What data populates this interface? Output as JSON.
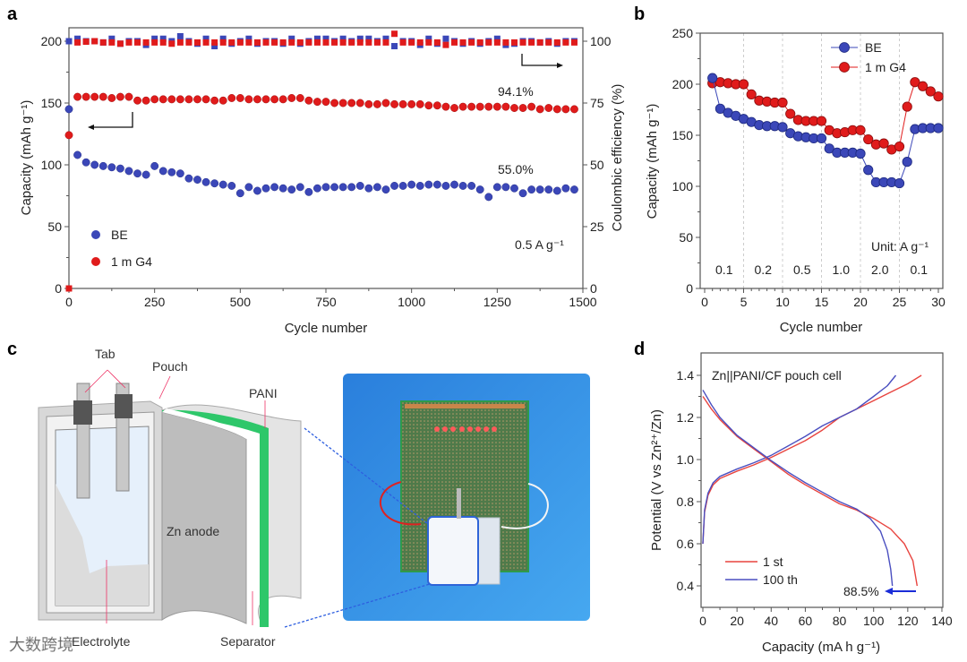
{
  "panel_labels": {
    "a": "a",
    "b": "b",
    "c": "c",
    "d": "d"
  },
  "colors": {
    "be": "#3b47b8",
    "g4": "#e01b1b",
    "axis": "#555555",
    "photo_bg": "#2f8fe0",
    "pcb": "#4f7a4a",
    "pani": "#2ec76a"
  },
  "chart_data": [
    {
      "id": "a",
      "type": "scatter",
      "xlabel": "Cycle number",
      "ylabel": "Capacity (mAh g⁻¹)",
      "y2label": "Coulombic efficiency (%)",
      "xlim": [
        0,
        1500
      ],
      "ylim": [
        0,
        200
      ],
      "y2lim": [
        0,
        100
      ],
      "xticks": [
        "0",
        "250",
        "500",
        "750",
        "1000",
        "1250",
        "1500"
      ],
      "yticks": [
        "0",
        "50",
        "100",
        "150",
        "200"
      ],
      "y2ticks": [
        "0",
        "25",
        "50",
        "75",
        "100"
      ],
      "x_start": 0,
      "x_step": 25,
      "legend": [
        "BE",
        "1 m G4"
      ],
      "annotations": {
        "g4_retention": "94.1%",
        "be_retention": "55.0%",
        "rate": "0.5 A g⁻¹"
      },
      "series": [
        {
          "name": "BE",
          "kind": "capacity",
          "axis": "left",
          "values": [
            145,
            108,
            102,
            100,
            99,
            98,
            97,
            95,
            93,
            92,
            99,
            95,
            94,
            93,
            89,
            88,
            86,
            85,
            84,
            83,
            77,
            82,
            79,
            81,
            82,
            81,
            80,
            82,
            78,
            81,
            82,
            82,
            82,
            82,
            83,
            81,
            82,
            80,
            83,
            83,
            84,
            83,
            84,
            84,
            83,
            84,
            83,
            83,
            80,
            74,
            82,
            82,
            81,
            77,
            80,
            80,
            80,
            79,
            81,
            80
          ]
        },
        {
          "name": "1 m G4",
          "kind": "capacity",
          "axis": "left",
          "values": [
            124,
            155,
            155,
            155,
            155,
            154,
            155,
            155,
            152,
            152,
            153,
            153,
            153,
            153,
            153,
            153,
            153,
            152,
            152,
            154,
            154,
            153,
            153,
            153,
            153,
            153,
            154,
            154,
            152,
            151,
            151,
            150,
            150,
            150,
            150,
            149,
            149,
            150,
            149,
            149,
            149,
            149,
            148,
            148,
            147,
            146,
            147,
            147,
            147,
            147,
            147,
            147,
            146,
            146,
            147,
            145,
            146,
            145,
            145,
            145
          ]
        },
        {
          "name": "BE",
          "kind": "ce",
          "axis": "right",
          "values": [
            100,
            101,
            100,
            100,
            99.5,
            101,
            99,
            100,
            100,
            98.5,
            101,
            101,
            100,
            102,
            100,
            99,
            101,
            98,
            101,
            99,
            100,
            101,
            99,
            100,
            100,
            99,
            101,
            99,
            100,
            101,
            101,
            100,
            101,
            100,
            101,
            101,
            100,
            101,
            98,
            100,
            100,
            98.5,
            101,
            99,
            101,
            100,
            99,
            100,
            99,
            100,
            101,
            98.5,
            99,
            100,
            100,
            99.5,
            100,
            99,
            100,
            100
          ]
        },
        {
          "name": "1 m G4",
          "kind": "ce",
          "axis": "right",
          "values": [
            0,
            99.5,
            99.8,
            100,
            99.5,
            99.5,
            99,
            99.5,
            99.5,
            99.5,
            99.5,
            99.5,
            99,
            99.5,
            99.5,
            99.5,
            99.5,
            99.5,
            99.5,
            99.5,
            99.5,
            99.5,
            99.5,
            99.5,
            99.5,
            99.5,
            99.5,
            99.5,
            99.5,
            99.5,
            99.5,
            99.5,
            99.5,
            99.5,
            99.5,
            99.5,
            99.5,
            99.5,
            103,
            99.5,
            99.5,
            99.5,
            99.5,
            99.5,
            98.5,
            99.5,
            99.5,
            99.5,
            99.5,
            99.5,
            99.5,
            99.5,
            99.5,
            99.5,
            99.5,
            99.5,
            99.5,
            99.5,
            99.5,
            99.5
          ]
        }
      ]
    },
    {
      "id": "b",
      "type": "line",
      "xlabel": "Cycle number",
      "ylabel": "Capacity (mAh g⁻¹)",
      "xlim": [
        0,
        30
      ],
      "ylim": [
        0,
        250
      ],
      "xticks": [
        "0",
        "5",
        "10",
        "15",
        "20",
        "25",
        "30"
      ],
      "yticks": [
        "0",
        "50",
        "100",
        "150",
        "200",
        "250"
      ],
      "x": [
        1,
        2,
        3,
        4,
        5,
        6,
        7,
        8,
        9,
        10,
        11,
        12,
        13,
        14,
        15,
        16,
        17,
        18,
        19,
        20,
        21,
        22,
        23,
        24,
        25,
        26,
        27,
        28,
        29,
        30
      ],
      "rates": [
        "0.1",
        "0.2",
        "0.5",
        "1.0",
        "2.0",
        "0.1"
      ],
      "unit_label": "Unit: A g⁻¹",
      "legend": [
        "BE",
        "1 m G4"
      ],
      "series": [
        {
          "name": "BE",
          "values": [
            206,
            176,
            172,
            169,
            166,
            163,
            160,
            159,
            159,
            158,
            152,
            149,
            148,
            147,
            147,
            137,
            133,
            133,
            133,
            132,
            116,
            104,
            104,
            104,
            103,
            124,
            156,
            157,
            157,
            157
          ]
        },
        {
          "name": "1 m G4",
          "values": [
            201,
            202,
            201,
            200,
            200,
            190,
            184,
            183,
            182,
            182,
            171,
            165,
            164,
            164,
            164,
            155,
            152,
            153,
            155,
            155,
            146,
            141,
            142,
            136,
            139,
            178,
            202,
            198,
            193,
            188
          ]
        }
      ]
    },
    {
      "id": "d",
      "type": "line",
      "title": "Zn||PANI/CF pouch cell",
      "xlabel": "Capacity (mA h g⁻¹)",
      "ylabel": "Potential (V vs Zn²⁺/Zn)",
      "xlim": [
        0,
        140
      ],
      "ylim": [
        0.3,
        1.5
      ],
      "xticks": [
        "0",
        "20",
        "40",
        "60",
        "80",
        "100",
        "120",
        "140"
      ],
      "yticks": [
        "0.4",
        "0.6",
        "0.8",
        "1.0",
        "1.2",
        "1.4"
      ],
      "legend": [
        "1 st",
        "100 th"
      ],
      "annotation": "88.5%",
      "series": [
        {
          "name": "1 st",
          "segment": "charge",
          "x": [
            0,
            1,
            3,
            6,
            10,
            20,
            30,
            40,
            50,
            60,
            70,
            80,
            90,
            100,
            110,
            120,
            128
          ],
          "y": [
            0.6,
            0.75,
            0.83,
            0.88,
            0.91,
            0.945,
            0.975,
            1.01,
            1.05,
            1.09,
            1.14,
            1.2,
            1.24,
            1.28,
            1.32,
            1.36,
            1.4
          ]
        },
        {
          "name": "100 th",
          "segment": "charge",
          "x": [
            0,
            1,
            3,
            6,
            10,
            20,
            30,
            40,
            50,
            60,
            70,
            80,
            90,
            100,
            108,
            113
          ],
          "y": [
            0.6,
            0.76,
            0.84,
            0.89,
            0.92,
            0.955,
            0.985,
            1.02,
            1.065,
            1.11,
            1.16,
            1.2,
            1.24,
            1.3,
            1.35,
            1.4
          ]
        },
        {
          "name": "1 st",
          "segment": "discharge",
          "x": [
            0,
            5,
            10,
            20,
            30,
            40,
            50,
            60,
            70,
            80,
            90,
            100,
            110,
            118,
            123,
            125.5
          ],
          "y": [
            1.3,
            1.24,
            1.19,
            1.11,
            1.05,
            0.99,
            0.93,
            0.88,
            0.835,
            0.79,
            0.76,
            0.72,
            0.67,
            0.6,
            0.52,
            0.4
          ]
        },
        {
          "name": "100 th",
          "segment": "discharge",
          "x": [
            0,
            5,
            10,
            20,
            30,
            40,
            50,
            60,
            70,
            80,
            90,
            98,
            104,
            108,
            110,
            111
          ],
          "y": [
            1.33,
            1.26,
            1.2,
            1.115,
            1.055,
            0.995,
            0.94,
            0.89,
            0.845,
            0.8,
            0.765,
            0.72,
            0.66,
            0.57,
            0.48,
            0.4
          ]
        }
      ]
    }
  ],
  "diagram_c": {
    "labels": {
      "tab": "Tab",
      "pouch": "Pouch",
      "pani": "PANI",
      "anode": "Zn anode",
      "electrolyte": "Electrolyte",
      "separator": "Separator"
    },
    "watermark": "大数跨境"
  }
}
